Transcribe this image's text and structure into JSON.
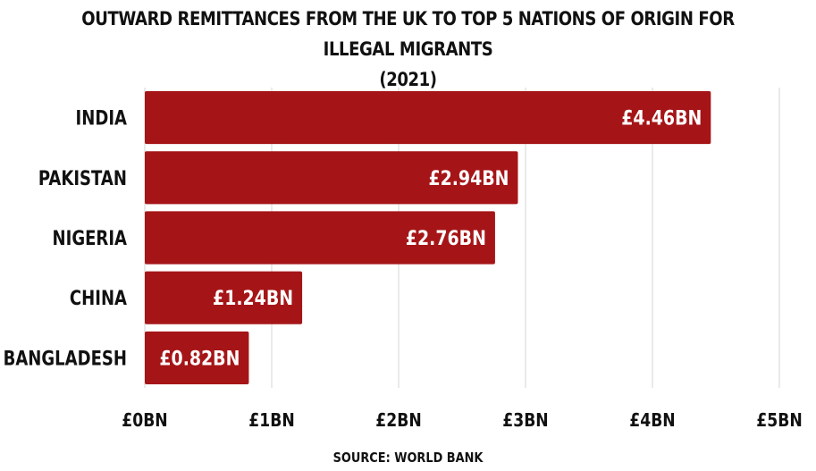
{
  "chart_data": {
    "type": "bar",
    "orientation": "horizontal",
    "title": "OUTWARD REMITTANCES FROM THE UK TO TOP 5 NATIONS OF ORIGIN FOR ILLEGAL MIGRANTS",
    "subtitle": "(2021)",
    "categories": [
      "INDIA",
      "PAKISTAN",
      "NIGERIA",
      "CHINA",
      "BANGLADESH"
    ],
    "values": [
      4.46,
      2.94,
      2.76,
      1.24,
      0.82
    ],
    "data_labels": [
      "£4.46BN",
      "£2.94BN",
      "£2.76BN",
      "£1.24BN",
      "£0.82BN"
    ],
    "x_ticks": [
      0,
      1,
      2,
      3,
      4,
      5
    ],
    "x_tick_labels": [
      "£0BN",
      "£1BN",
      "£2BN",
      "£3BN",
      "£4BN",
      "£5BN"
    ],
    "xlim": [
      0,
      5
    ],
    "grid": true,
    "legend": "none",
    "bar_color": "#a51517",
    "label_color": "#ffffff"
  },
  "source": "SOURCE: WORLD BANK"
}
